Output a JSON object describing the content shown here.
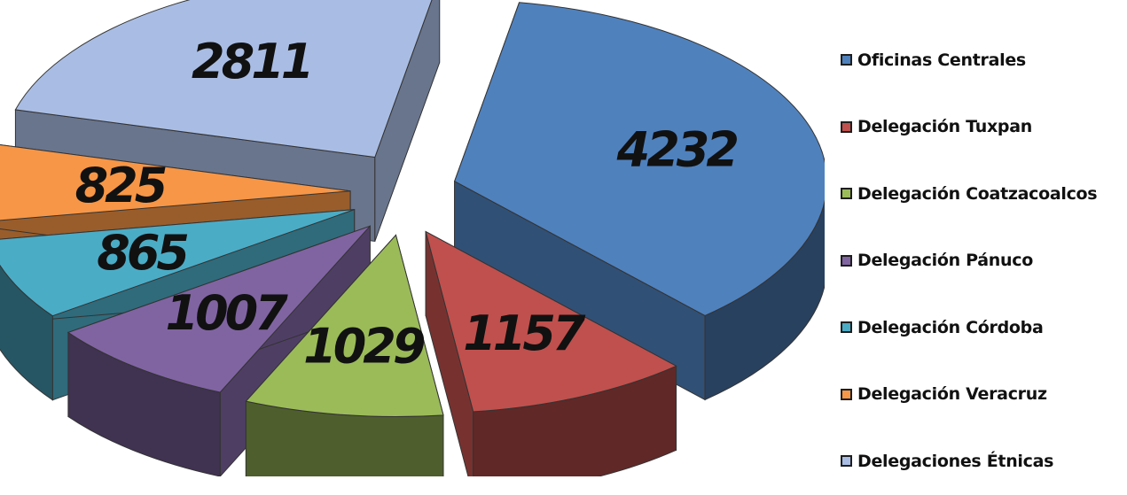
{
  "chart_data": {
    "type": "pie",
    "title": "",
    "style": "exploded-3d",
    "legend_position": "right",
    "categories": [
      "Oficinas Centrales",
      "Delegación Tuxpan",
      "Delegación Coatzacoalcos",
      "Delegación Pánuco",
      "Delegación Córdoba",
      "Delegación Veracruz",
      "Delegaciones Étnicas"
    ],
    "values": [
      4232,
      1157,
      1029,
      1007,
      865,
      825,
      2811
    ],
    "value_labels": [
      "4232",
      "1157",
      "1029",
      "1007",
      "865",
      "825",
      "2811"
    ],
    "colors": [
      "#4f81bd",
      "#c0504d",
      "#9bbb59",
      "#8064a2",
      "#4bacc6",
      "#f79646",
      "#a9bde4"
    ]
  }
}
